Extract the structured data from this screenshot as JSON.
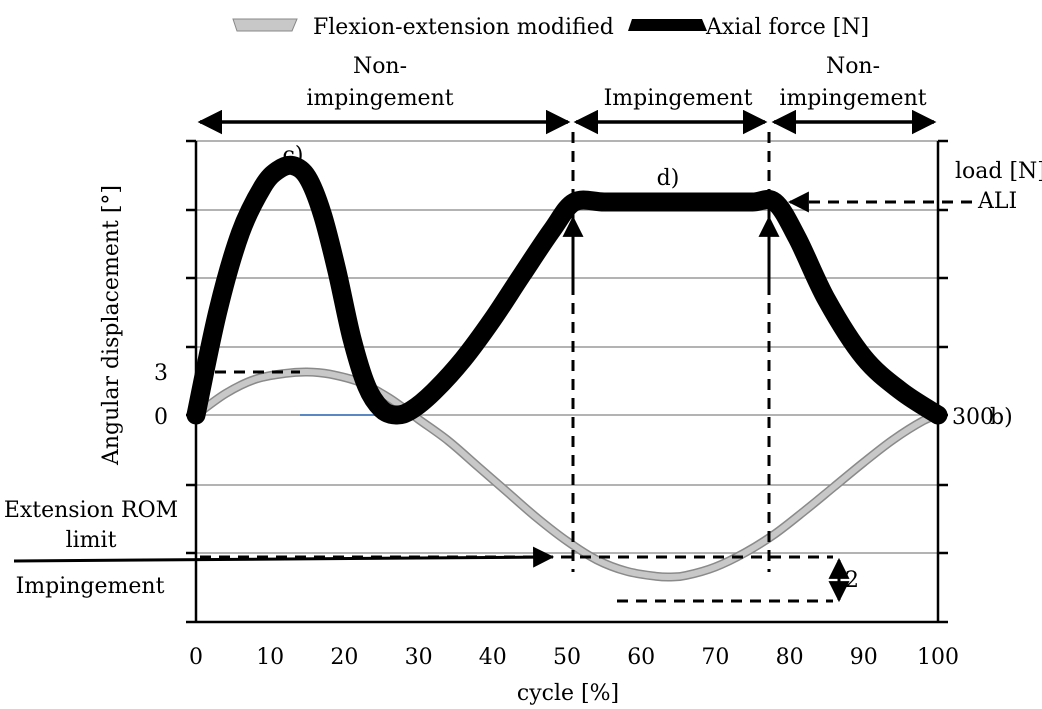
{
  "watermark": {
    "line1": "",
    "line2": "",
    "color": "#e8548a"
  },
  "legend": {
    "entries": [
      {
        "name": "Flexion-extension modified",
        "color": "#bdbdbd"
      },
      {
        "name": "Axial force [N]",
        "color": "#000000"
      }
    ],
    "placement": "top"
  },
  "phases": {
    "left": [
      "Non-",
      "impingement"
    ],
    "middle": "Impingement",
    "right": [
      "Non-",
      "impingement"
    ]
  },
  "annotations": {
    "c": "c)",
    "d": "d)",
    "b": "b)",
    "load_label": "load [N]",
    "ali": "ALI",
    "ext_rom_line1": "Extension ROM",
    "ext_rom_line2": "limit",
    "impingement": "Impingement",
    "two": "2",
    "three": "3",
    "zero": "0",
    "three_hundred": "300"
  },
  "chart_data": {
    "type": "line",
    "xlabel": "cycle [%]",
    "ylabel": "Angular displacement [°]",
    "xlim": [
      0,
      100
    ],
    "x_ticks": [
      "0",
      "10",
      "20",
      "30",
      "40",
      "50",
      "60",
      "70",
      "80",
      "90",
      "100"
    ],
    "grid": "horizontal",
    "series": [
      {
        "name": "Flexion-extension modified",
        "color": "#bdbdbd",
        "x": [
          0,
          4,
          8,
          12,
          15,
          18,
          22,
          26,
          30,
          34,
          38,
          42,
          46,
          50,
          54,
          58,
          62,
          64,
          66,
          70,
          74,
          78,
          82,
          86,
          90,
          94,
          98,
          100
        ],
        "y": [
          0,
          1.5,
          2.5,
          2.9,
          3.0,
          2.85,
          2.3,
          1.2,
          -0.3,
          -1.8,
          -3.6,
          -5.4,
          -7.2,
          -8.8,
          -10.1,
          -10.9,
          -11.25,
          -11.3,
          -11.2,
          -10.6,
          -9.6,
          -8.3,
          -6.7,
          -5.0,
          -3.3,
          -1.7,
          -0.4,
          0
        ]
      },
      {
        "name": "Axial force [N]",
        "color": "#000000",
        "x": [
          0,
          3,
          6,
          9,
          11,
          13,
          15,
          17,
          19,
          21,
          23,
          25,
          27,
          29,
          32,
          36,
          40,
          44,
          48,
          51,
          55,
          60,
          65,
          70,
          75,
          78,
          81,
          85,
          90,
          95,
          100
        ],
        "y": [
          0,
          110,
          190,
          238,
          255,
          260,
          248,
          210,
          150,
          80,
          30,
          6,
          0,
          5,
          24,
          58,
          100,
          147,
          193,
          222,
          222,
          222,
          222,
          222,
          222,
          222,
          185,
          120,
          60,
          25,
          0
        ]
      }
    ],
    "y_left_ticks": [
      "3",
      "0"
    ],
    "y_right_ticks": [
      "300",
      "ALI"
    ]
  }
}
